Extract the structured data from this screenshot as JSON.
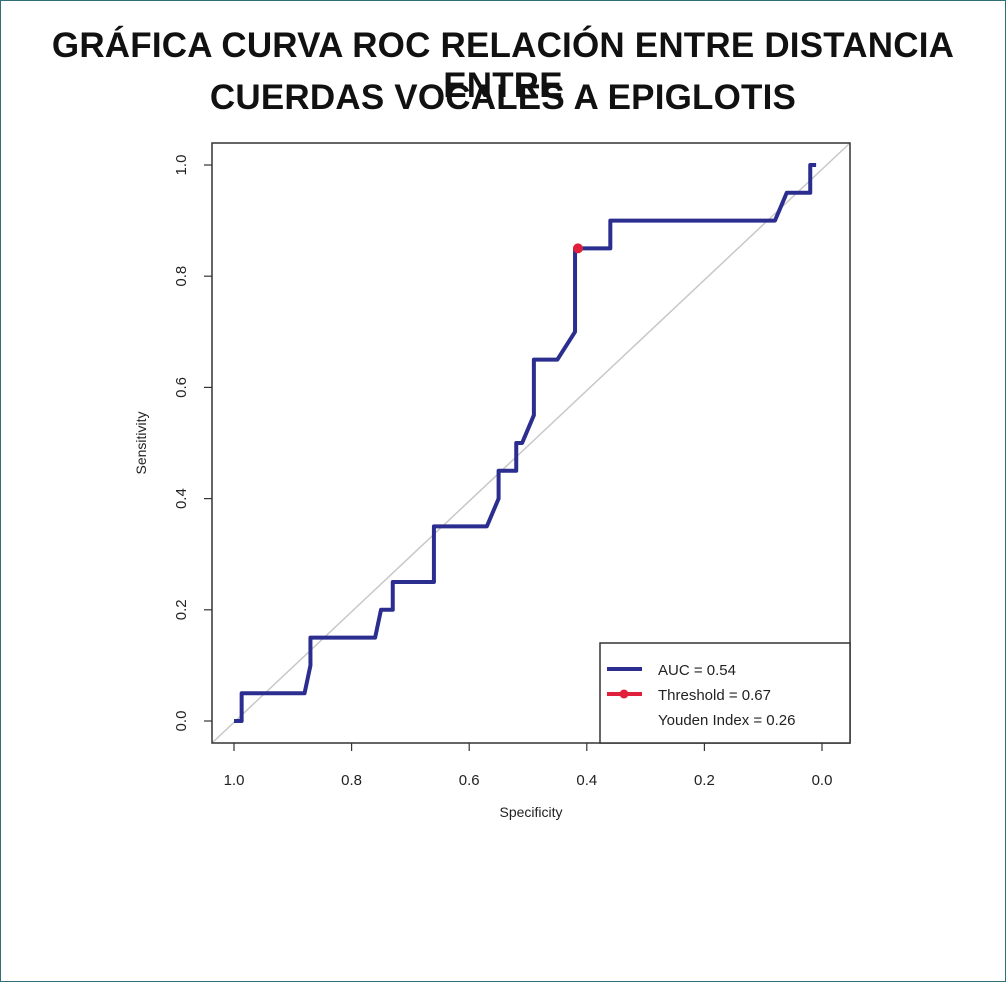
{
  "title_lines": [
    "GRÁFICA CURVA ROC RELACIÓN ENTRE DISTANCIA ENTRE",
    "CUERDAS VOCALES A EPIGLOTIS"
  ],
  "colors": {
    "roc": "#2b2d8f",
    "diagonal": "#c8c8c8",
    "threshold_point": "#e0203a",
    "axis": "#333333"
  },
  "chart_data": {
    "type": "line",
    "title": "GRÁFICA CURVA ROC RELACIÓN ENTRE DISTANCIA ENTRE CUERDAS VOCALES A EPIGLOTIS",
    "xlabel": "Specificity",
    "ylabel": "Sensitivity",
    "xlim": [
      1.0,
      0.0
    ],
    "ylim": [
      0.0,
      1.0
    ],
    "x_reversed": true,
    "x_ticks": [
      1.0,
      0.8,
      0.6,
      0.4,
      0.2,
      0.0
    ],
    "x_tick_labels": [
      "1.0",
      "0.8",
      "0.6",
      "0.4",
      "0.2",
      "0.0"
    ],
    "y_ticks": [
      0.0,
      0.2,
      0.4,
      0.6,
      0.8,
      1.0
    ],
    "y_tick_labels": [
      "0.0",
      "0.2",
      "0.4",
      "0.6",
      "0.8",
      "1.0"
    ],
    "diagonal": true,
    "series": [
      {
        "name": "ROC",
        "specificity": [
          1.0,
          0.987,
          0.987,
          0.88,
          0.87,
          0.87,
          0.76,
          0.75,
          0.74,
          0.73,
          0.73,
          0.66,
          0.66,
          0.57,
          0.55,
          0.55,
          0.52,
          0.52,
          0.51,
          0.49,
          0.49,
          0.46,
          0.45,
          0.42,
          0.42,
          0.36,
          0.36,
          0.08,
          0.06,
          0.02,
          0.02,
          0.01
        ],
        "sensitivity": [
          0.0,
          0.0,
          0.05,
          0.05,
          0.1,
          0.15,
          0.15,
          0.2,
          0.2,
          0.2,
          0.25,
          0.25,
          0.35,
          0.35,
          0.4,
          0.45,
          0.45,
          0.5,
          0.5,
          0.55,
          0.65,
          0.65,
          0.65,
          0.7,
          0.85,
          0.85,
          0.9,
          0.9,
          0.95,
          0.95,
          1.0,
          1.0
        ]
      }
    ],
    "threshold_point": {
      "specificity": 0.415,
      "sensitivity": 0.85
    },
    "legend": {
      "position": "bottom-right",
      "entries": [
        "AUC = 0.54",
        "Threshold = 0.67",
        "Youden Index = 0.26"
      ]
    }
  }
}
